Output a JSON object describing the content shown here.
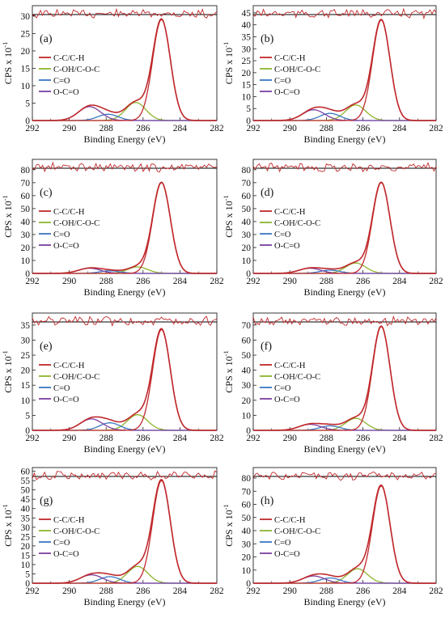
{
  "legend_items": [
    {
      "label": "C-C/C-H",
      "color": "#c0282b"
    },
    {
      "label": "C-OH/C-O-C",
      "color": "#8db42d"
    },
    {
      "label": "C=O",
      "color": "#3a76c3"
    },
    {
      "label": "O-C=O",
      "color": "#7b3fa0"
    }
  ],
  "envelope_color": "#c0282b",
  "residual_color": "#c0282b",
  "chart_data": [
    {
      "panel": "(a)",
      "type": "line",
      "xlabel": "Binding Energy (eV)",
      "ylabel": "CPS x 10",
      "ylabel_exp": "-1",
      "xlim": [
        292,
        282
      ],
      "ylim": [
        0,
        33
      ],
      "x_ticks": [
        292,
        290,
        288,
        286,
        284,
        282
      ],
      "y_ticks": [
        0,
        5,
        10,
        15,
        20,
        25,
        30
      ],
      "peaks": [
        {
          "name": "C-C/C-H",
          "center": 285.0,
          "height": 29
        },
        {
          "name": "C-OH/C-O-C",
          "center": 286.4,
          "height": 5.2
        },
        {
          "name": "C=O",
          "center": 287.9,
          "height": 1.8
        },
        {
          "name": "O-C=O",
          "center": 288.9,
          "height": 4.0
        }
      ]
    },
    {
      "panel": "(b)",
      "type": "line",
      "xlabel": "Binding Energy (eV)",
      "ylabel": "CPS x 10",
      "ylabel_exp": "-1",
      "xlim": [
        292,
        282
      ],
      "ylim": [
        0,
        48
      ],
      "x_ticks": [
        292,
        290,
        288,
        286,
        284,
        282
      ],
      "y_ticks": [
        0,
        5,
        10,
        15,
        20,
        25,
        30,
        35,
        40,
        45
      ],
      "peaks": [
        {
          "name": "C-C/C-H",
          "center": 285.0,
          "height": 42
        },
        {
          "name": "C-OH/C-O-C",
          "center": 286.4,
          "height": 6.5
        },
        {
          "name": "C=O",
          "center": 287.8,
          "height": 3.0
        },
        {
          "name": "O-C=O",
          "center": 288.7,
          "height": 4.5
        }
      ]
    },
    {
      "panel": "(c)",
      "type": "line",
      "xlabel": "Binding Energy (eV)",
      "ylabel": "CPS x 10",
      "ylabel_exp": "-1",
      "xlim": [
        292,
        282
      ],
      "ylim": [
        0,
        88
      ],
      "x_ticks": [
        292,
        290,
        288,
        286,
        284,
        282
      ],
      "y_ticks": [
        0,
        10,
        20,
        30,
        40,
        50,
        60,
        70,
        80
      ],
      "peaks": [
        {
          "name": "C-C/C-H",
          "center": 285.0,
          "height": 70
        },
        {
          "name": "C-OH/C-O-C",
          "center": 286.3,
          "height": 5.0
        },
        {
          "name": "C=O",
          "center": 287.8,
          "height": 2.0
        },
        {
          "name": "O-C=O",
          "center": 288.9,
          "height": 4.0
        }
      ]
    },
    {
      "panel": "(d)",
      "type": "line",
      "xlabel": "Binding Energy (eV)",
      "ylabel": "CPS x 10",
      "ylabel_exp": "-1",
      "xlim": [
        292,
        282
      ],
      "ylim": [
        0,
        88
      ],
      "x_ticks": [
        292,
        290,
        288,
        286,
        284,
        282
      ],
      "y_ticks": [
        0,
        10,
        20,
        30,
        40,
        50,
        60,
        70,
        80
      ],
      "peaks": [
        {
          "name": "C-C/C-H",
          "center": 285.0,
          "height": 70
        },
        {
          "name": "C-OH/C-O-C",
          "center": 286.4,
          "height": 8.0
        },
        {
          "name": "C=O",
          "center": 287.8,
          "height": 2.5
        },
        {
          "name": "O-C=O",
          "center": 288.9,
          "height": 4.0
        }
      ]
    },
    {
      "panel": "(e)",
      "type": "line",
      "xlabel": "Binding Energy (eV)",
      "ylabel": "CPS x 10",
      "ylabel_exp": "-1",
      "xlim": [
        292,
        282
      ],
      "ylim": [
        0,
        39
      ],
      "x_ticks": [
        292,
        290,
        288,
        286,
        284,
        282
      ],
      "y_ticks": [
        0,
        5,
        10,
        15,
        20,
        25,
        30,
        35
      ],
      "peaks": [
        {
          "name": "C-C/C-H",
          "center": 285.0,
          "height": 33.5
        },
        {
          "name": "C-OH/C-O-C",
          "center": 286.3,
          "height": 5.2
        },
        {
          "name": "C=O",
          "center": 287.8,
          "height": 2.5
        },
        {
          "name": "O-C=O",
          "center": 288.8,
          "height": 3.8
        }
      ]
    },
    {
      "panel": "(f)",
      "type": "line",
      "xlabel": "Binding Energy (eV)",
      "ylabel": "CPS x 10",
      "ylabel_exp": "-1",
      "xlim": [
        292,
        282
      ],
      "ylim": [
        0,
        78
      ],
      "x_ticks": [
        292,
        290,
        288,
        286,
        284,
        282
      ],
      "y_ticks": [
        0,
        10,
        20,
        30,
        40,
        50,
        60,
        70
      ],
      "peaks": [
        {
          "name": "C-C/C-H",
          "center": 285.0,
          "height": 69
        },
        {
          "name": "C-OH/C-O-C",
          "center": 286.4,
          "height": 8.0
        },
        {
          "name": "C=O",
          "center": 287.8,
          "height": 3.0
        },
        {
          "name": "O-C=O",
          "center": 288.9,
          "height": 4.0
        }
      ]
    },
    {
      "panel": "(g)",
      "type": "line",
      "xlabel": "Binding Energy (eV)",
      "ylabel": "CPS x 10",
      "ylabel_exp": "-1",
      "xlim": [
        292,
        282
      ],
      "ylim": [
        0,
        62
      ],
      "x_ticks": [
        292,
        290,
        288,
        286,
        284,
        282
      ],
      "y_ticks": [
        0,
        5,
        10,
        15,
        20,
        25,
        30,
        35,
        40,
        45,
        50,
        55,
        60
      ],
      "peaks": [
        {
          "name": "C-C/C-H",
          "center": 285.0,
          "height": 55
        },
        {
          "name": "C-OH/C-O-C",
          "center": 286.3,
          "height": 9.0
        },
        {
          "name": "C=O",
          "center": 287.8,
          "height": 3.5
        },
        {
          "name": "O-C=O",
          "center": 288.8,
          "height": 4.5
        }
      ]
    },
    {
      "panel": "(h)",
      "type": "line",
      "xlabel": "Binding Energy (eV)",
      "ylabel": "CPS x 10",
      "ylabel_exp": "-1",
      "xlim": [
        292,
        282
      ],
      "ylim": [
        0,
        88
      ],
      "x_ticks": [
        292,
        290,
        288,
        286,
        284,
        282
      ],
      "y_ticks": [
        0,
        10,
        20,
        30,
        40,
        50,
        60,
        70,
        80
      ],
      "peaks": [
        {
          "name": "C-C/C-H",
          "center": 285.0,
          "height": 74
        },
        {
          "name": "C-OH/C-O-C",
          "center": 286.3,
          "height": 11.0
        },
        {
          "name": "C=O",
          "center": 287.8,
          "height": 4.0
        },
        {
          "name": "O-C=O",
          "center": 288.7,
          "height": 5.5
        }
      ]
    }
  ]
}
